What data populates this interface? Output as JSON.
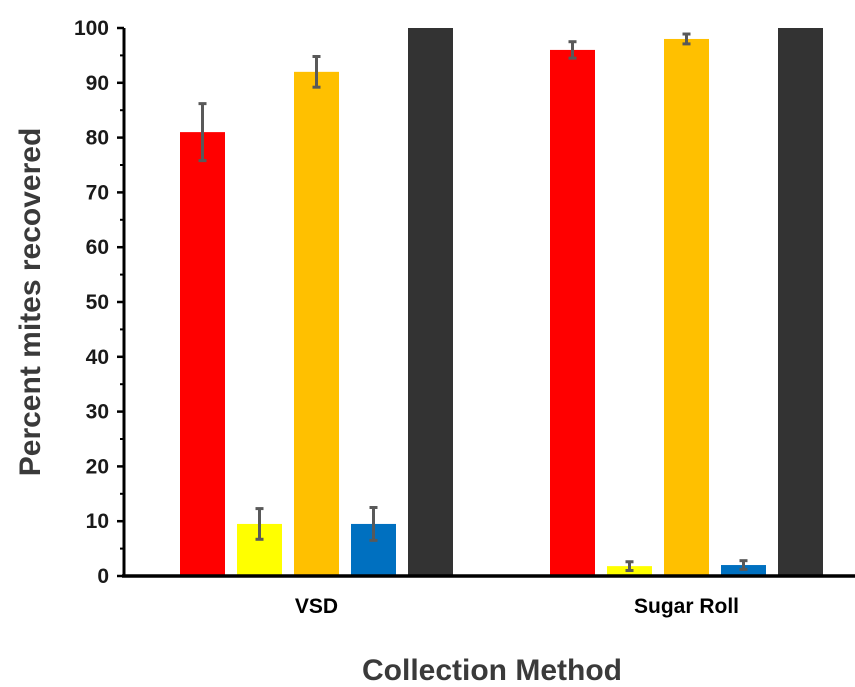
{
  "chart_data": {
    "type": "bar",
    "categories": [
      "VSD",
      "Sugar Roll"
    ],
    "xlabel": "Collection Method",
    "ylabel": "Percent mites recovered",
    "ylim": [
      0,
      100
    ],
    "yticks": [
      "0",
      "10",
      "20",
      "30",
      "40",
      "50",
      "60",
      "70",
      "80",
      "90",
      "100"
    ],
    "series": [
      {
        "color": "#ff0000",
        "values": [
          81,
          96
        ],
        "errors": [
          5.2,
          1.5
        ]
      },
      {
        "color": "#ffff00",
        "values": [
          9.5,
          1.8
        ],
        "errors": [
          2.8,
          0.8
        ]
      },
      {
        "color": "#ffc000",
        "values": [
          92,
          98
        ],
        "errors": [
          2.8,
          0.9
        ]
      },
      {
        "color": "#0070c0",
        "values": [
          9.5,
          2.0
        ],
        "errors": [
          3.0,
          0.8
        ]
      },
      {
        "color": "#333333",
        "values": [
          100,
          100
        ],
        "errors": [
          0,
          0
        ]
      }
    ],
    "error_bar_color": "#595959",
    "grid": false,
    "legend": "none"
  }
}
